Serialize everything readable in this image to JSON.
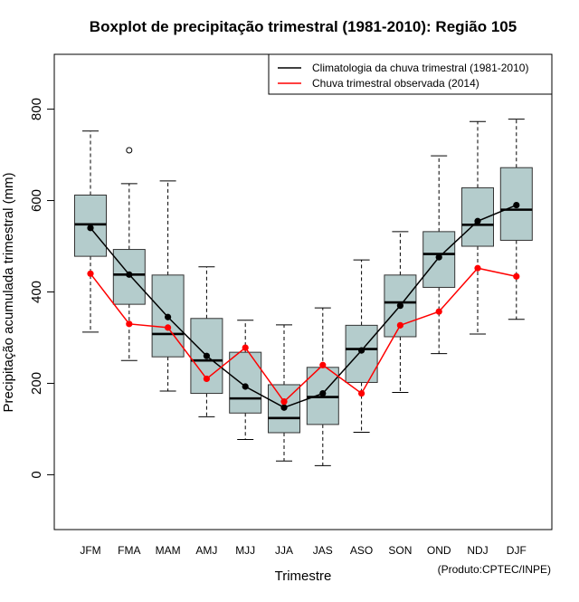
{
  "chart_data": {
    "type": "boxplot",
    "title": "Boxplot de precipitação trimestral (1981-2010): Região 105",
    "xlabel": "Trimestre",
    "ylabel": "Precipitação acumulada trimestral (mm)",
    "credit": "(Produto:CPTEC/INPE)",
    "ylim": [
      -120,
      920
    ],
    "yticks": [
      0,
      200,
      400,
      600,
      800
    ],
    "categories": [
      "JFM",
      "FMA",
      "MAM",
      "AMJ",
      "MJJ",
      "JJA",
      "JAS",
      "ASO",
      "SON",
      "OND",
      "NDJ",
      "DJF"
    ],
    "boxes": [
      {
        "whisker_low": 312,
        "q1": 478,
        "median": 548,
        "q3": 612,
        "whisker_high": 752,
        "outliers": []
      },
      {
        "whisker_low": 250,
        "q1": 373,
        "median": 438,
        "q3": 493,
        "whisker_high": 637,
        "outliers": [
          710
        ]
      },
      {
        "whisker_low": 183,
        "q1": 258,
        "median": 308,
        "q3": 437,
        "whisker_high": 643,
        "outliers": []
      },
      {
        "whisker_low": 127,
        "q1": 178,
        "median": 250,
        "q3": 342,
        "whisker_high": 455,
        "outliers": []
      },
      {
        "whisker_low": 77,
        "q1": 135,
        "median": 167,
        "q3": 268,
        "whisker_high": 338,
        "outliers": []
      },
      {
        "whisker_low": 30,
        "q1": 92,
        "median": 124,
        "q3": 197,
        "whisker_high": 328,
        "outliers": []
      },
      {
        "whisker_low": 20,
        "q1": 110,
        "median": 170,
        "q3": 235,
        "whisker_high": 365,
        "outliers": []
      },
      {
        "whisker_low": 93,
        "q1": 202,
        "median": 275,
        "q3": 327,
        "whisker_high": 470,
        "outliers": []
      },
      {
        "whisker_low": 180,
        "q1": 302,
        "median": 377,
        "q3": 437,
        "whisker_high": 532,
        "outliers": []
      },
      {
        "whisker_low": 265,
        "q1": 410,
        "median": 483,
        "q3": 532,
        "whisker_high": 698,
        "outliers": []
      },
      {
        "whisker_low": 308,
        "q1": 500,
        "median": 547,
        "q3": 628,
        "whisker_high": 773,
        "outliers": []
      },
      {
        "whisker_low": 340,
        "q1": 513,
        "median": 580,
        "q3": 672,
        "whisker_high": 778,
        "outliers": []
      }
    ],
    "series": [
      {
        "name": "Climatologia da chuva trimestral (1981-2010)",
        "color": "#000000",
        "values": [
          540,
          438,
          345,
          260,
          193,
          147,
          178,
          272,
          370,
          476,
          555,
          590
        ]
      },
      {
        "name": "Chuva trimestral observada (2014)",
        "color": "#ff0000",
        "values": [
          440,
          330,
          322,
          210,
          278,
          160,
          240,
          178,
          327,
          357,
          452,
          434
        ]
      }
    ],
    "box_fill": "#b4cccc",
    "legend_position": "top-right"
  }
}
